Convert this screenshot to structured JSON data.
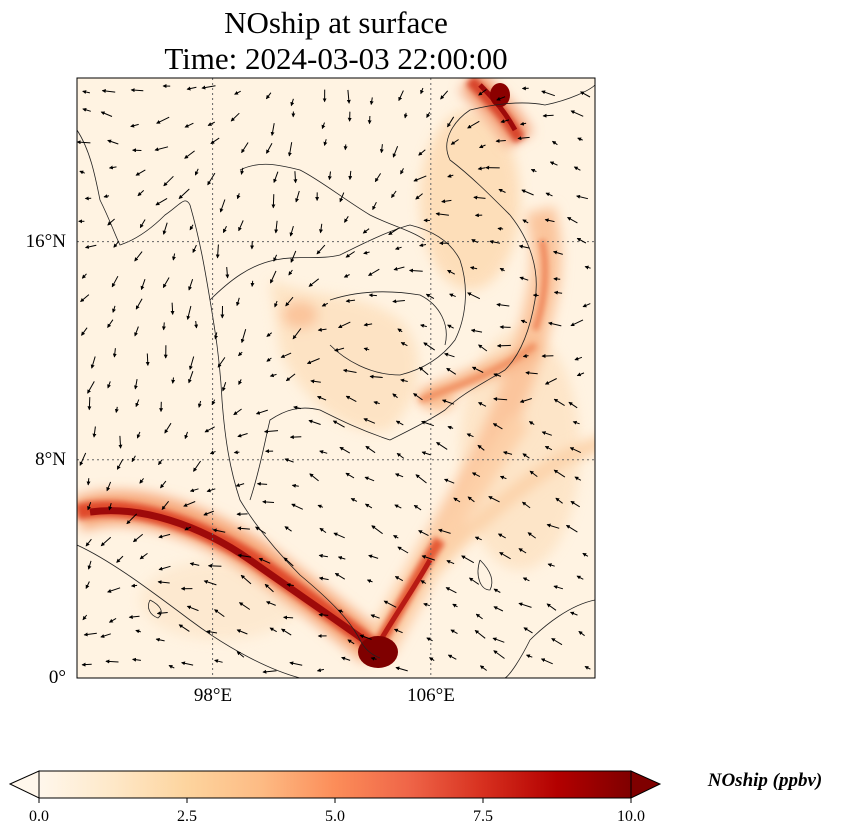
{
  "title": {
    "line1": "NOship at surface",
    "line2": "Time: 2024-03-03 22:00:00"
  },
  "map": {
    "lat_ticks": [
      {
        "value": 16,
        "label": "16°N"
      },
      {
        "value": 8,
        "label": "8°N"
      },
      {
        "value": 0,
        "label": "0°"
      }
    ],
    "lon_ticks": [
      {
        "value": 98,
        "label": "98°E"
      },
      {
        "value": 106,
        "label": "106°E"
      }
    ],
    "lon_range": [
      93,
      112
    ],
    "lat_range": [
      0,
      22
    ],
    "gridlines": true,
    "variable_field_colormap": "OrRd",
    "wind_vectors": true
  },
  "colorbar": {
    "label": "NOship (ppbv)",
    "min": 0.0,
    "max": 10.0,
    "ticks": [
      "0.0",
      "2.5",
      "5.0",
      "7.5",
      "10.0"
    ],
    "extend": "both",
    "colors": [
      "#fff7ec",
      "#fee8c8",
      "#fdd49e",
      "#fdbb84",
      "#fc8d59",
      "#ef6548",
      "#d7301f",
      "#b30000",
      "#7f0000"
    ]
  }
}
